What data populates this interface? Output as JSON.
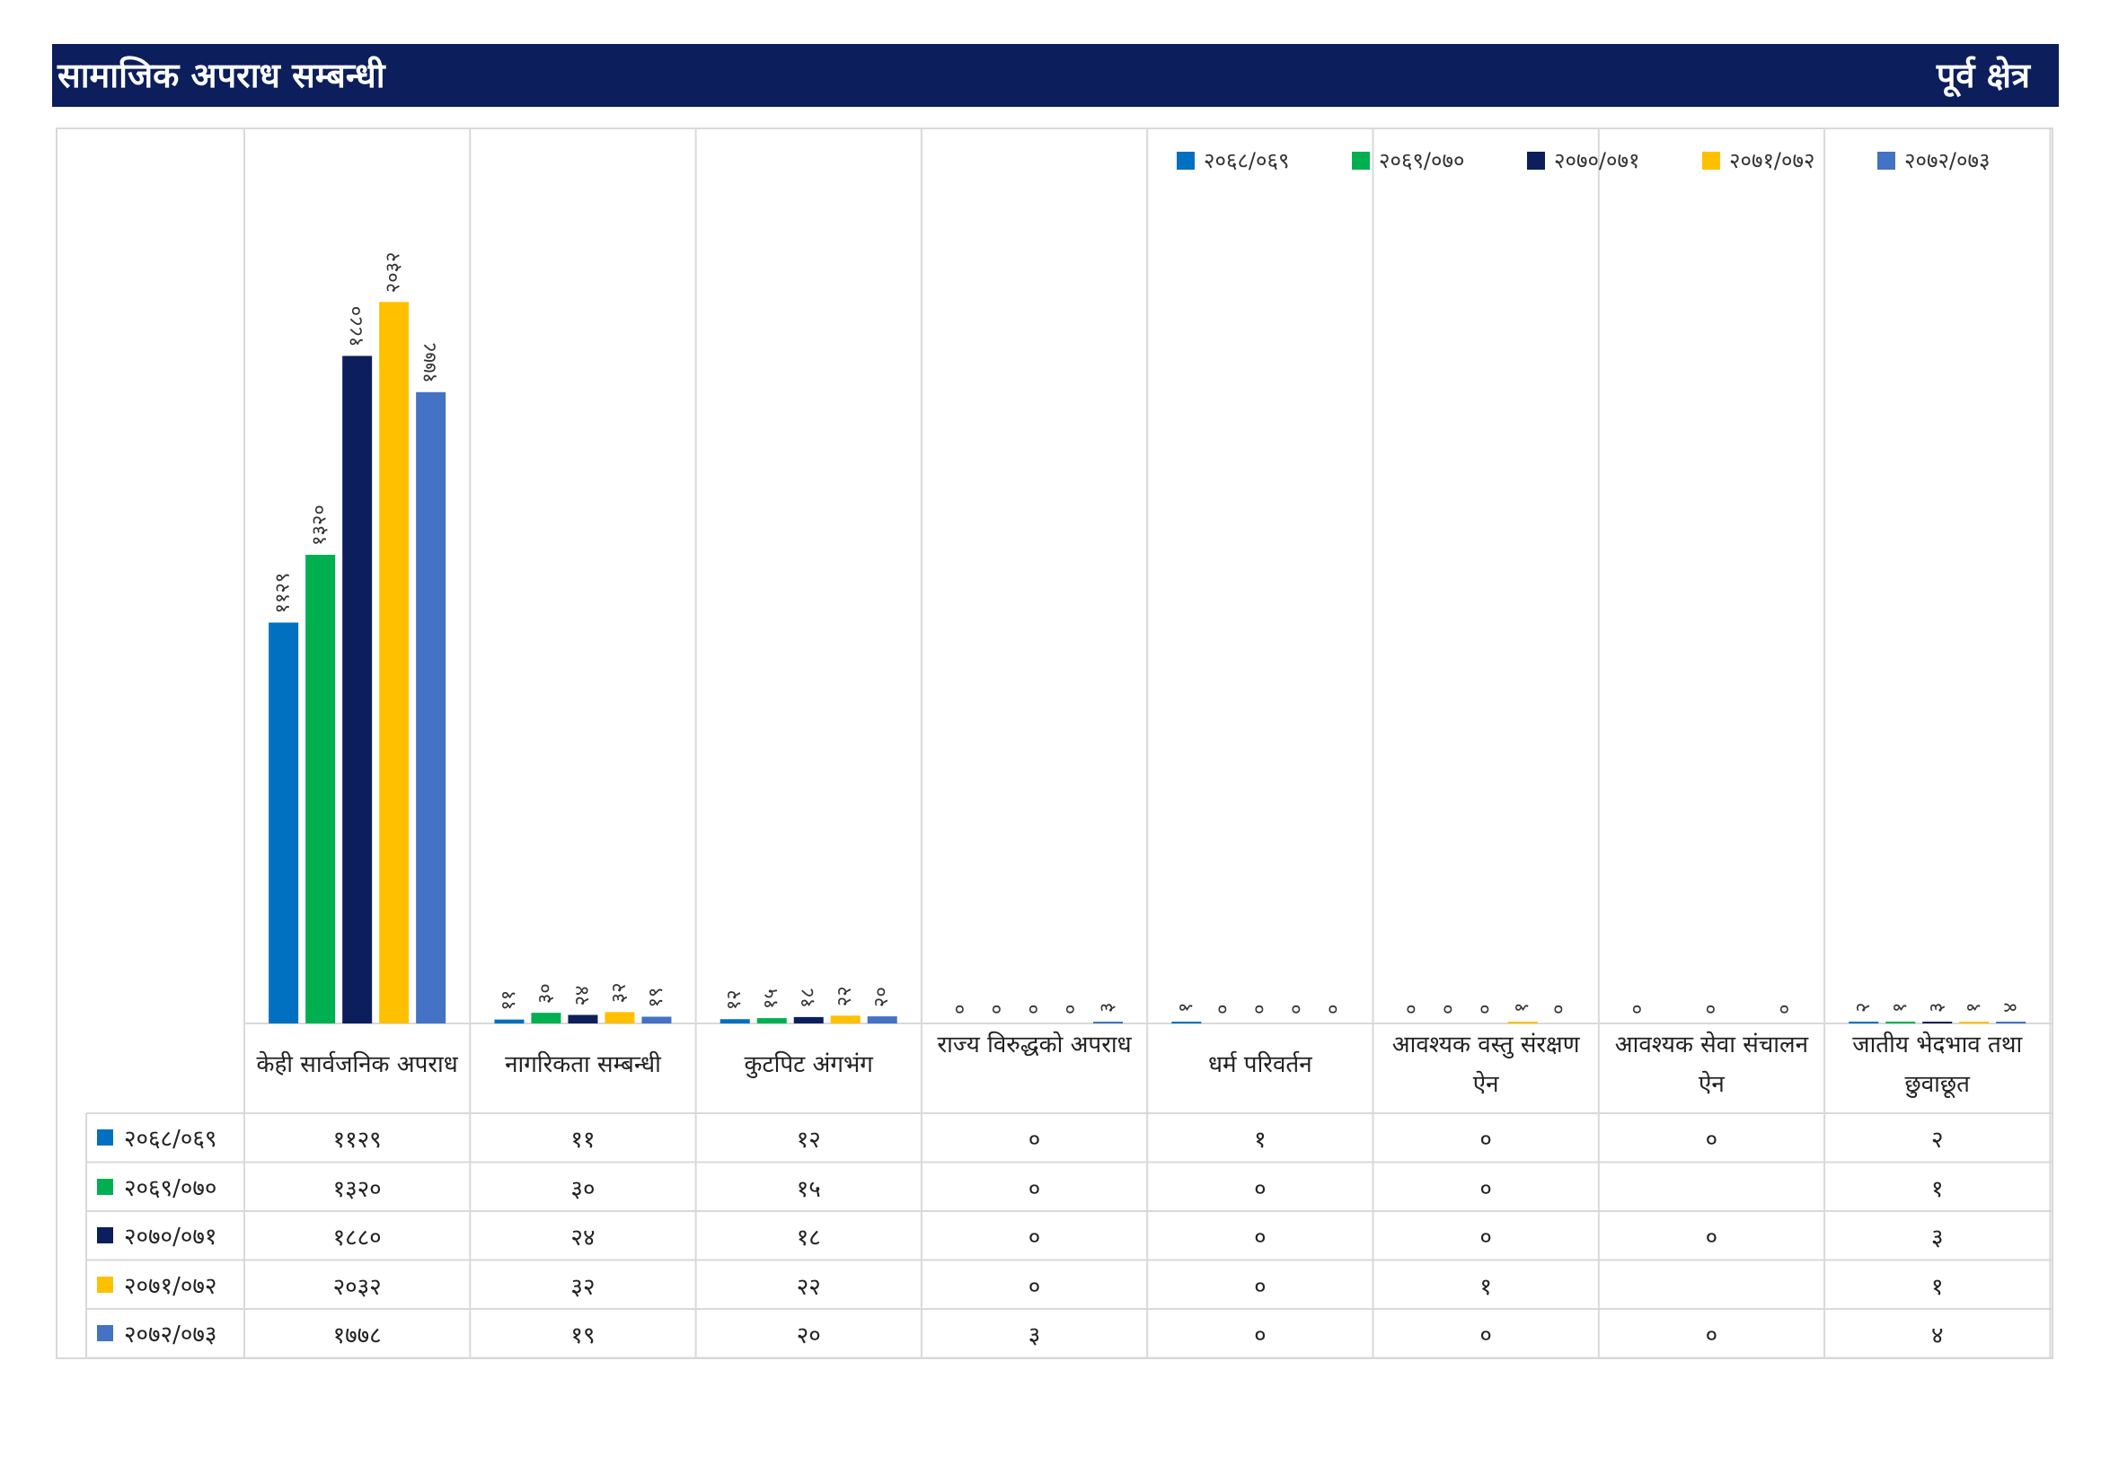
{
  "header": {
    "title": "सामाजिक अपराध सम्बन्धी",
    "region": "पूर्व क्षेत्र"
  },
  "colors": {
    "header_bg": "#0c1f5c",
    "series": [
      "#0070c0",
      "#00b050",
      "#0c1f5c",
      "#ffc000",
      "#4472c4"
    ],
    "grid": "#d9d9d9"
  },
  "chart_data": {
    "type": "bar",
    "categories": [
      "केही सार्वजनिक अपराध",
      "नागरिकता सम्बन्धी",
      "कुटपिट अंगभंग",
      "राज्य विरुद्धको अपराध",
      "धर्म परिवर्तन",
      "आवश्यक वस्तु संरक्षण ऐन",
      "आवश्यक सेवा संचालन ऐन",
      "जातीय भेदभाव तथा छुवाछूत"
    ],
    "series": [
      {
        "name": "२०६८/०६९",
        "values": [
          1129,
          11,
          12,
          0,
          1,
          0,
          0,
          2
        ],
        "labels": [
          "११२९",
          "११",
          "१२",
          "०",
          "१",
          "०",
          "०",
          "२"
        ]
      },
      {
        "name": "२०६९/०७०",
        "values": [
          1320,
          30,
          15,
          0,
          0,
          0,
          null,
          1
        ],
        "labels": [
          "१३२०",
          "३०",
          "१५",
          "०",
          "०",
          "०",
          "",
          "१"
        ]
      },
      {
        "name": "२०७०/०७१",
        "values": [
          1880,
          24,
          18,
          0,
          0,
          0,
          0,
          3
        ],
        "labels": [
          "१८८०",
          "२४",
          "१८",
          "०",
          "०",
          "०",
          "०",
          "३"
        ]
      },
      {
        "name": "२०७१/०७२",
        "values": [
          2032,
          32,
          22,
          0,
          0,
          1,
          null,
          1
        ],
        "labels": [
          "२०३२",
          "३२",
          "२२",
          "०",
          "०",
          "१",
          "",
          "१"
        ]
      },
      {
        "name": "२०७२/०७३",
        "values": [
          1778,
          19,
          20,
          3,
          0,
          0,
          0,
          4
        ],
        "labels": [
          "१७७८",
          "१९",
          "२०",
          "३",
          "०",
          "०",
          "०",
          "४"
        ]
      }
    ],
    "ylim": [
      0,
      2500
    ],
    "legend_position": "top-right",
    "grid": "vertical category separators",
    "data_table": true
  }
}
